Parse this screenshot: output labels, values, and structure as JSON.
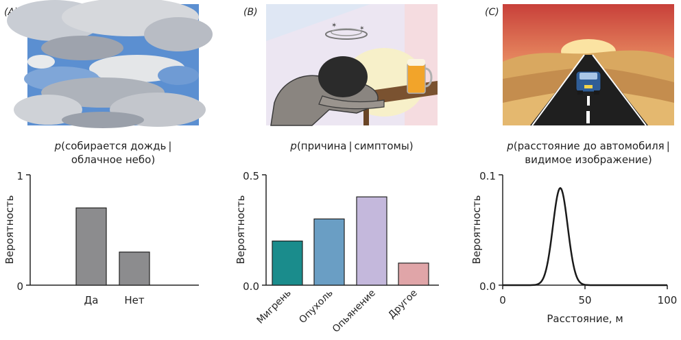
{
  "panels": [
    {
      "letter": "(A)",
      "caption_line1": "(собирается дождь |",
      "caption_line2": "облачное небо)",
      "p": "p"
    },
    {
      "letter": "(B)",
      "caption_line1": "(причина | симптомы)",
      "caption_line2": "",
      "p": "p"
    },
    {
      "letter": "(C)",
      "caption_line1": "(расстояние до автомобиля |",
      "caption_line2": "видимое изображение)",
      "p": "p"
    }
  ],
  "chart_data": [
    {
      "type": "bar",
      "categories": [
        "Да",
        "Нет"
      ],
      "values": [
        0.7,
        0.3
      ],
      "ylabel": "Вероятность",
      "ylim": [
        0,
        1
      ],
      "yticks": [
        "0",
        "1"
      ],
      "bar_color": "#8c8c8e"
    },
    {
      "type": "bar",
      "categories": [
        "Мигрень",
        "Опухоль",
        "Опьянение",
        "Другое"
      ],
      "values": [
        0.2,
        0.3,
        0.4,
        0.1
      ],
      "ylabel": "Вероятность",
      "ylim": [
        0,
        0.5
      ],
      "yticks": [
        "0.0",
        "0.5"
      ],
      "bar_colors": [
        "#1a8c8c",
        "#6a9ec4",
        "#c4b8dc",
        "#e0a5a8"
      ]
    },
    {
      "type": "line",
      "xlabel": "Расстояние, м",
      "ylabel": "Вероятность",
      "xlim": [
        0,
        100
      ],
      "ylim": [
        0,
        0.1
      ],
      "xticks": [
        "0",
        "50",
        "100"
      ],
      "yticks": [
        "0.0",
        "0.1"
      ],
      "distribution": {
        "mean": 35,
        "sd": 4.5,
        "peak": 0.088
      },
      "line_color": "#1a1a1a"
    }
  ]
}
